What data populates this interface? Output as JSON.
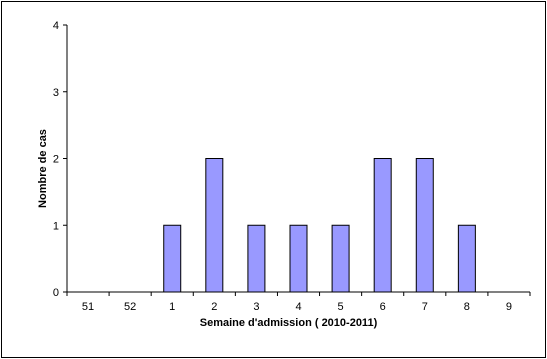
{
  "chart_data": {
    "type": "bar",
    "title": "",
    "xlabel": "Semaine d'admission ( 2010-2011)",
    "ylabel": "Nombre de cas",
    "categories": [
      "51",
      "52",
      "1",
      "2",
      "3",
      "4",
      "5",
      "6",
      "7",
      "8",
      "9"
    ],
    "values": [
      0,
      0,
      1,
      2,
      1,
      1,
      1,
      2,
      2,
      1,
      0
    ],
    "ylim": [
      0,
      4
    ],
    "yticks": [
      "0",
      "1",
      "2",
      "3",
      "4"
    ],
    "grid": false,
    "legend": "none",
    "bar_color": "#9999ff",
    "bar_stroke": "#000000"
  }
}
